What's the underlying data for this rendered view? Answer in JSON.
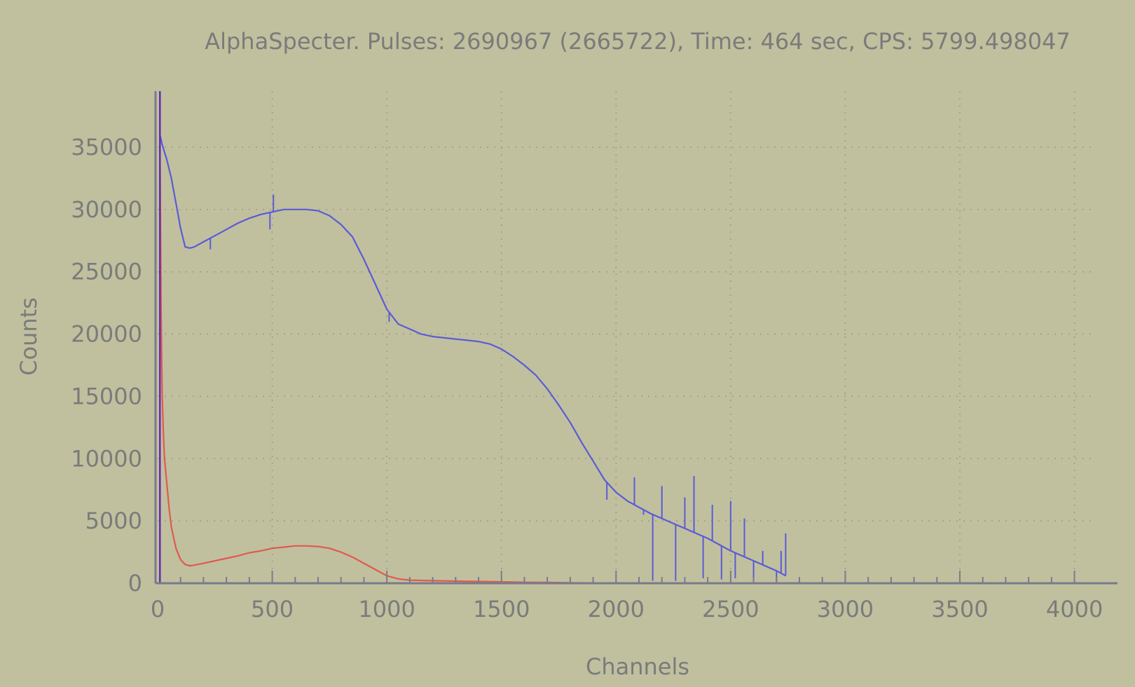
{
  "chart_data": {
    "type": "line",
    "title": "AlphaSpecter. Pulses: 2690967 (2665722), Time: 464 sec, CPS: 5799.498047",
    "xlabel": "Channels",
    "ylabel": "Counts",
    "xlim": [
      0,
      4096
    ],
    "ylim": [
      0,
      39500
    ],
    "x_ticks": [
      0,
      500,
      1000,
      1500,
      2000,
      2500,
      3000,
      3500,
      4000
    ],
    "y_ticks": [
      0,
      5000,
      10000,
      15000,
      20000,
      25000,
      30000,
      35000
    ],
    "grid": true,
    "colors": {
      "background": "#c0c09f",
      "axis": "#7a7a8a",
      "grid": "#9a9a88",
      "text": "#7b7b7b",
      "series_blue": "#5b5bd6",
      "series_red": "#e05a4e",
      "marker": "#6a2ab0"
    },
    "series": [
      {
        "color": "#5b5bd6",
        "x": [
          10,
          20,
          40,
          60,
          80,
          100,
          120,
          140,
          160,
          200,
          250,
          300,
          350,
          400,
          450,
          500,
          550,
          600,
          650,
          700,
          750,
          800,
          850,
          900,
          950,
          1000,
          1050,
          1100,
          1150,
          1200,
          1250,
          1300,
          1350,
          1400,
          1450,
          1500,
          1550,
          1600,
          1650,
          1700,
          1750,
          1800,
          1850,
          1900,
          1950,
          2000,
          2050,
          2100,
          2150,
          2200,
          2250,
          2300,
          2350,
          2400,
          2450,
          2500,
          2550,
          2600,
          2650,
          2700,
          2740
        ],
        "y": [
          36000,
          35200,
          34000,
          32500,
          30500,
          28500,
          27000,
          26900,
          27000,
          27400,
          27900,
          28400,
          28900,
          29300,
          29600,
          29800,
          30000,
          30000,
          30000,
          29900,
          29500,
          28800,
          27800,
          26000,
          24000,
          22000,
          20800,
          20400,
          20000,
          19800,
          19700,
          19600,
          19500,
          19400,
          19200,
          18800,
          18200,
          17500,
          16700,
          15600,
          14300,
          12900,
          11300,
          9800,
          8300,
          7300,
          6600,
          6100,
          5600,
          5200,
          4800,
          4400,
          4000,
          3600,
          3100,
          2600,
          2200,
          1800,
          1400,
          1000,
          600
        ]
      },
      {
        "color": "#e05a4e",
        "x": [
          10,
          15,
          20,
          25,
          30,
          40,
          50,
          60,
          80,
          100,
          120,
          140,
          160,
          200,
          250,
          300,
          350,
          400,
          450,
          500,
          550,
          600,
          650,
          700,
          750,
          800,
          850,
          900,
          950,
          1000,
          1050,
          1100,
          1200,
          1300,
          1400,
          1500,
          1600,
          1700,
          1800,
          1900,
          2000
        ],
        "y": [
          35000,
          22000,
          15000,
          12000,
          10000,
          8000,
          6000,
          4500,
          2800,
          1900,
          1500,
          1400,
          1450,
          1600,
          1800,
          2000,
          2200,
          2450,
          2600,
          2800,
          2900,
          3000,
          3000,
          2950,
          2800,
          2500,
          2100,
          1600,
          1100,
          600,
          350,
          250,
          200,
          170,
          140,
          110,
          80,
          60,
          40,
          20,
          10
        ]
      }
    ],
    "noise_spikes_blue": [
      [
        230,
        26800
      ],
      [
        490,
        28400
      ],
      [
        505,
        31200
      ],
      [
        1010,
        21000
      ],
      [
        1960,
        6700
      ],
      [
        2080,
        8500
      ],
      [
        2120,
        5500
      ],
      [
        2160,
        200
      ],
      [
        2200,
        7800
      ],
      [
        2260,
        200
      ],
      [
        2300,
        6900
      ],
      [
        2340,
        8600
      ],
      [
        2380,
        400
      ],
      [
        2420,
        6300
      ],
      [
        2460,
        300
      ],
      [
        2500,
        6600
      ],
      [
        2520,
        400
      ],
      [
        2560,
        5200
      ],
      [
        2600,
        300
      ],
      [
        2640,
        2600
      ],
      [
        2700,
        200
      ],
      [
        2720,
        2600
      ],
      [
        2740,
        4000
      ]
    ],
    "marker_channel": 10
  }
}
